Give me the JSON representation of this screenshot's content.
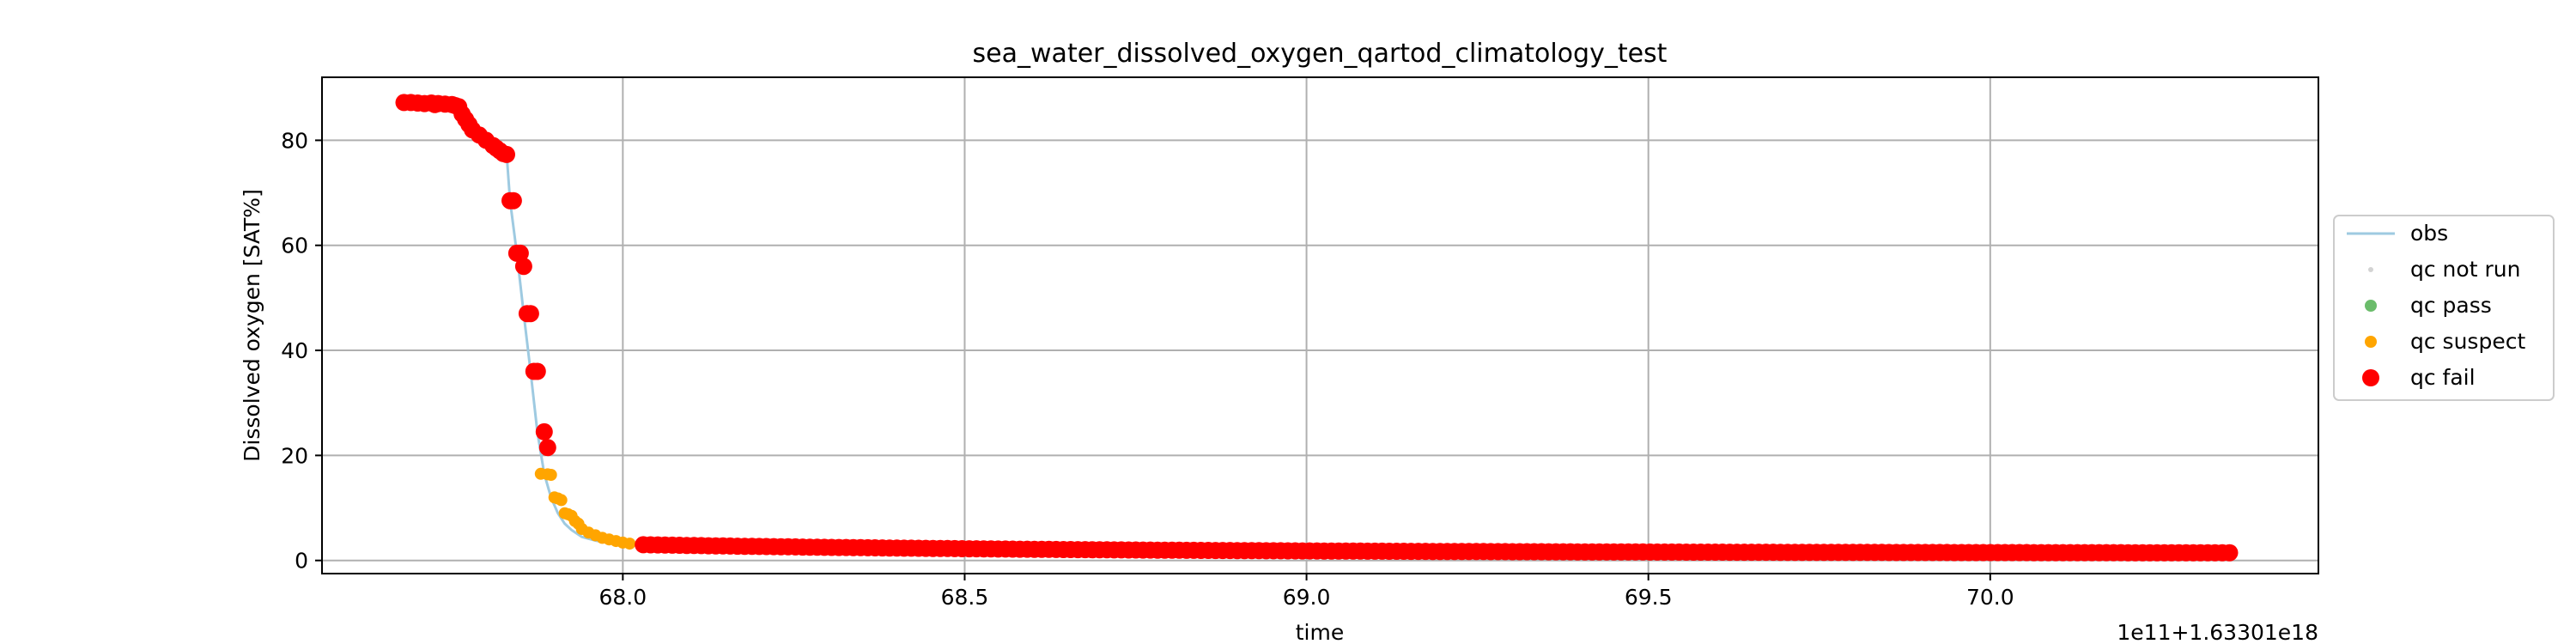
{
  "chart_data": {
    "type": "scatter",
    "title": "sea_water_dissolved_oxygen_qartod_climatology_test",
    "xlabel": "time",
    "ylabel": "Dissolved oxygen [SAT%]",
    "x_offset_label": "1e11+1.63301e18",
    "xlim": [
      67.56,
      70.48
    ],
    "ylim": [
      -2.5,
      92
    ],
    "x_ticks": [
      68.0,
      68.5,
      69.0,
      69.5,
      70.0
    ],
    "x_tick_labels": [
      "68.0",
      "68.5",
      "69.0",
      "69.5",
      "70.0"
    ],
    "y_ticks": [
      0,
      20,
      40,
      60,
      80
    ],
    "y_tick_labels": [
      "0",
      "20",
      "40",
      "60",
      "80"
    ],
    "grid": true,
    "legend_position": "outside-right",
    "colors": {
      "obs": "#9ecae1",
      "qc_not_run": "#d3d3d3",
      "qc_pass": "#2ca02c",
      "qc_suspect": "#ffa500",
      "qc_fail": "#ff0000"
    },
    "series": [
      {
        "name": "obs",
        "kind": "line",
        "x": [
          67.68,
          67.7,
          67.72,
          67.74,
          67.76,
          67.78,
          67.8,
          67.815,
          67.83,
          67.835,
          67.845,
          67.855,
          67.865,
          67.875,
          67.885,
          67.895,
          67.905,
          67.915,
          67.925,
          67.94,
          67.96,
          67.98,
          68.0,
          68.02,
          68.04,
          68.08,
          68.15,
          68.3,
          68.5,
          68.8,
          69.0,
          69.5,
          69.8,
          70.0,
          70.35
        ],
        "y": [
          87.2,
          87.1,
          87.0,
          86.8,
          86.4,
          84.0,
          80.0,
          78.5,
          77.5,
          68.5,
          58.5,
          47.0,
          36.0,
          24.5,
          16.5,
          12.0,
          9.0,
          7.0,
          5.8,
          4.5,
          3.8,
          3.3,
          3.0,
          2.9,
          2.7,
          2.5,
          2.3,
          2.0,
          1.9,
          1.8,
          1.8,
          1.7,
          1.6,
          1.5,
          1.4
        ]
      },
      {
        "name": "qc not run",
        "kind": "points",
        "x": [],
        "y": []
      },
      {
        "name": "qc pass",
        "kind": "points",
        "x": [],
        "y": []
      },
      {
        "name": "qc suspect",
        "kind": "points",
        "x": [
          67.88,
          67.89,
          67.895,
          67.9,
          67.905,
          67.91,
          67.915,
          67.92,
          67.925,
          67.93,
          67.935,
          67.94,
          67.95,
          67.96,
          67.97,
          67.98,
          67.99,
          68.0,
          68.01
        ],
        "y": [
          16.5,
          16.4,
          16.3,
          12.0,
          11.8,
          11.5,
          9.0,
          8.8,
          8.5,
          7.5,
          7.0,
          6.0,
          5.3,
          4.8,
          4.3,
          4.0,
          3.7,
          3.4,
          3.2
        ]
      },
      {
        "name": "qc fail",
        "kind": "points",
        "curve": {
          "x_start": 68.03,
          "x_end": 70.35,
          "count": 220,
          "y_start": 3.0,
          "y_end": 1.4
        },
        "x": [
          67.68,
          67.69,
          67.7,
          67.71,
          67.72,
          67.725,
          67.73,
          67.74,
          67.75,
          67.755,
          67.76,
          67.765,
          67.77,
          67.775,
          67.78,
          67.79,
          67.8,
          67.81,
          67.815,
          67.82,
          67.825,
          67.83,
          67.835,
          67.84,
          67.845,
          67.85,
          67.855,
          67.86,
          67.865,
          67.87,
          67.875,
          67.885,
          67.89
        ],
        "y": [
          87.2,
          87.2,
          87.1,
          87.0,
          87.1,
          86.8,
          87.0,
          86.9,
          86.8,
          86.6,
          86.4,
          85.0,
          84.0,
          83.0,
          82.0,
          81.0,
          80.0,
          79.0,
          78.5,
          78.0,
          77.5,
          77.3,
          68.5,
          68.5,
          58.5,
          58.5,
          56.0,
          47.0,
          47.0,
          36.0,
          36.0,
          24.5,
          21.5
        ]
      }
    ]
  }
}
